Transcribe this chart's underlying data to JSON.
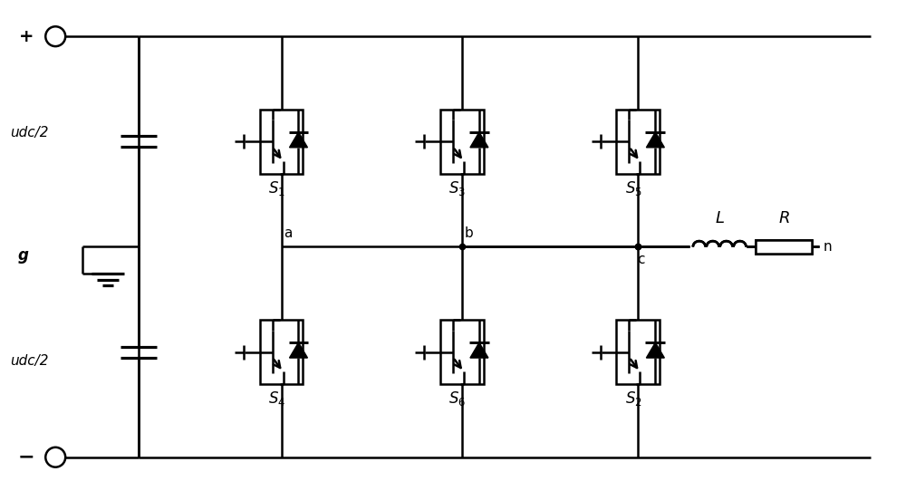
{
  "bg_color": "#ffffff",
  "line_color": "#000000",
  "line_width": 2.0,
  "fig_width": 10.0,
  "fig_height": 5.31,
  "labels": {
    "plus": "+",
    "minus": "−",
    "udc2_top": "udc/2",
    "udc2_bot": "udc/2",
    "g": "g",
    "S1": "$\\boldsymbol{S_1}$",
    "S2": "$\\boldsymbol{S_2}$",
    "S3": "$\\boldsymbol{S_3}$",
    "S4": "$\\boldsymbol{S_4}$",
    "S5": "$\\boldsymbol{S_5}$",
    "S6": "$\\boldsymbol{S_6}$",
    "a": "a",
    "b": "b",
    "c": "c",
    "L": "$\\it{L}$",
    "R": "$\\it{R}$",
    "n": "n"
  }
}
